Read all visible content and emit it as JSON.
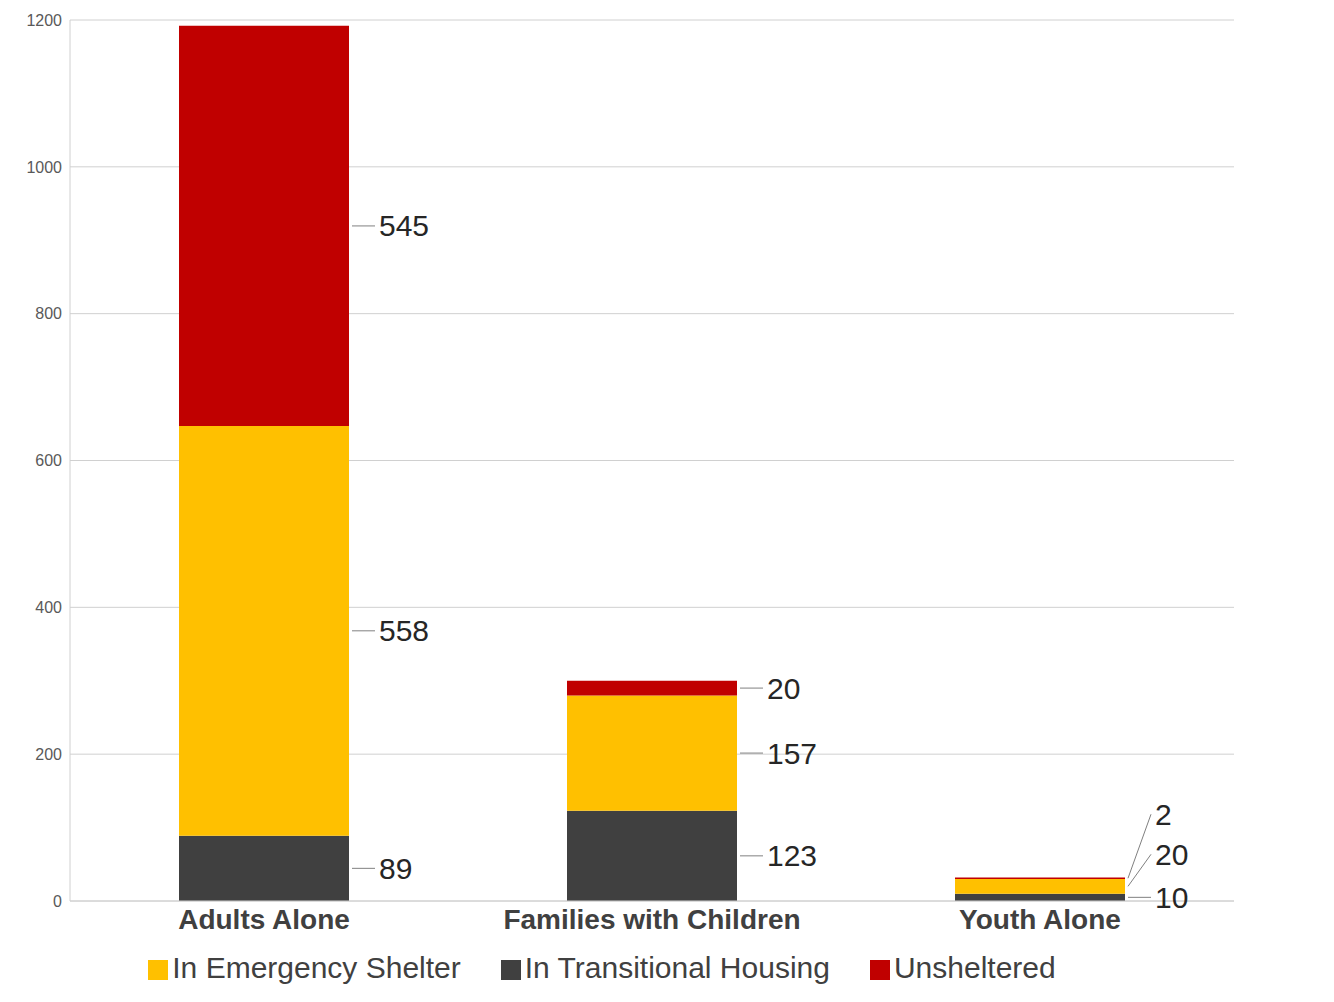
{
  "chart_data": {
    "type": "bar",
    "stacked": true,
    "categories": [
      "Adults Alone",
      "Families with Children",
      "Youth Alone"
    ],
    "series": [
      {
        "name": "In Transitional Housing",
        "color": "#404040",
        "values": [
          89,
          123,
          10
        ]
      },
      {
        "name": "In Emergency Shelter",
        "color": "#ffc000",
        "values": [
          558,
          157,
          20
        ]
      },
      {
        "name": "Unsheltered",
        "color": "#c00000",
        "values": [
          545,
          20,
          2
        ]
      }
    ],
    "ylim": [
      0,
      1200
    ],
    "yticks": [
      0,
      200,
      400,
      600,
      800,
      1000,
      1200
    ],
    "grid": true,
    "legend": "bottom",
    "data_labels": true
  }
}
